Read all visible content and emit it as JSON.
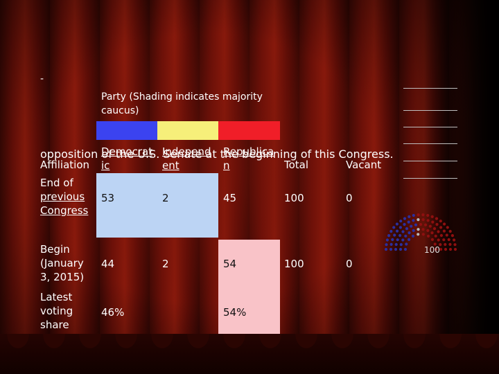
{
  "top_dash": "-",
  "caption": "Party (Shading indicates majority caucus)",
  "overlay_text": "opposition of the U.S. Senate at the beginning of this Congress.",
  "headers": {
    "affiliation": "Affiliation",
    "democrat_line1": "Democrat",
    "democrat_line2": "ic",
    "independent_line1": "Independ",
    "independent_line2": "ent",
    "republican_line1": "Republica",
    "republican_line2": "n",
    "total": "Total",
    "vacant": "Vacant"
  },
  "colors": {
    "democratic": "#3b43f0",
    "independent": "#f6ef7a",
    "republican": "#f01e28",
    "dem_majority_shade": "#bcd4f4",
    "rep_majority_shade": "#f9c3c8"
  },
  "rows": [
    {
      "label_lines": [
        "End of",
        "previous",
        "Congress"
      ],
      "democratic": "53",
      "independent": "2",
      "republican": "45",
      "total": "100",
      "vacant": "0"
    },
    {
      "label_lines": [
        "Begin",
        "(January",
        "3, 2015)"
      ],
      "democratic": "44",
      "independent": "2",
      "republican": "54",
      "total": "100",
      "vacant": "0"
    },
    {
      "label_lines": [
        "Latest",
        "voting",
        "share"
      ],
      "democratic": "46%",
      "independent": "",
      "republican": "54%",
      "total": "",
      "vacant": ""
    }
  ],
  "chamber_label": "100",
  "chamber_colors": {
    "dem": "#2b2f9e",
    "ind": "#b8b8b8",
    "rep": "#8e1010"
  }
}
